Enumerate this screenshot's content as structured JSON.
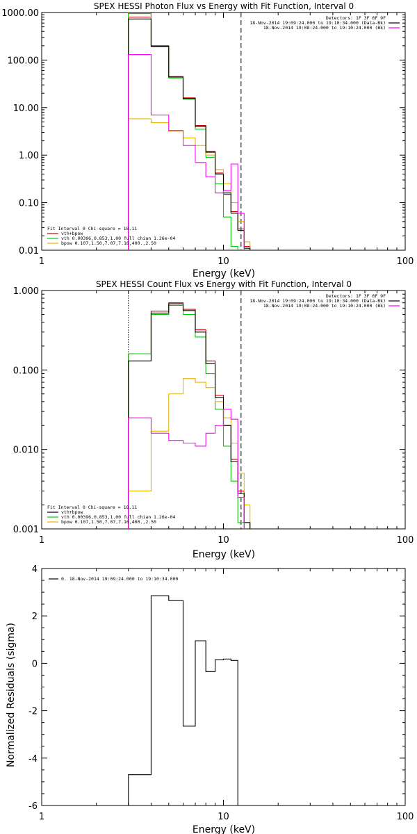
{
  "colors": {
    "data": "#000000",
    "bk": "#ff00ff",
    "total": "#cc0000",
    "vth": "#00cc00",
    "bpow": "#e8b400"
  },
  "chart_data": [
    {
      "id": "photon",
      "type": "line",
      "title": "SPEX HESSI Photon Flux vs Energy with Fit Function, Interval 0",
      "xlabel": "Energy (keV)",
      "ylabel": "",
      "xscale": "log",
      "yscale": "log",
      "xlim": [
        1,
        100
      ],
      "ylim": [
        0.01,
        1000
      ],
      "xticks": [
        "1",
        "10",
        "100"
      ],
      "yticks": [
        "1000.00",
        "100.00",
        "10.00",
        "1.00",
        "0.10",
        "0.01"
      ],
      "vlines": [
        {
          "x": 3.0,
          "style": "dotted",
          "color": "#e8b400"
        },
        {
          "x": 12.5,
          "style": "dashed",
          "color": "#000000"
        }
      ],
      "legend_tr": [
        "Detectors: 1F 3F 6F 9F",
        "18-Nov-2014 19:09:24.000 to 19:10:34.000 (Data-Bk)",
        "18-Nov-2014 19:08:24.000 to 19:10:24.000 (Bk)"
      ],
      "legend_tr_colors": [
        "",
        "data",
        "bk"
      ],
      "legend_bl": [
        "Fit Interval 0   Chi-square = 18.11",
        "vth+bpow",
        "vth 0.00396,0.853,1.00  full chian 1.26e-04",
        "bpow 0.107,1.50,7.07,7.16,400.,2.50"
      ],
      "legend_bl_colors": [
        "",
        "total",
        "vth",
        "bpow"
      ],
      "edges": [
        3.0,
        4.0,
        5.0,
        6.0,
        7.0,
        8.0,
        9.0,
        10.0,
        11.0,
        12.0,
        13.0,
        14.0,
        15.0
      ],
      "series": [
        {
          "name": "vth+bpow",
          "color": "total",
          "values": [
            800,
            200,
            45,
            16,
            4.2,
            1.2,
            0.42,
            0.15,
            0.065,
            0.028,
            0.012,
            null
          ]
        },
        {
          "name": "vth",
          "color": "vth",
          "values": [
            950,
            190,
            42,
            15,
            3.5,
            0.9,
            0.25,
            0.05,
            0.012,
            null,
            null,
            null
          ]
        },
        {
          "name": "bpow",
          "color": "bpow",
          "values": [
            5.8,
            4.8,
            3.2,
            2.3,
            1.6,
            1.0,
            0.5,
            0.25,
            0.1,
            0.04,
            0.015,
            null
          ]
        },
        {
          "name": "Data-Bk",
          "color": "data",
          "values": [
            730,
            195,
            44,
            15.5,
            4.0,
            1.15,
            0.4,
            0.16,
            0.06,
            0.026,
            0.011,
            null
          ]
        },
        {
          "name": "Bk",
          "color": "bk",
          "values": [
            130,
            7.0,
            3.3,
            1.6,
            0.7,
            0.35,
            0.16,
            0.18,
            0.65,
            0.06,
            null,
            null
          ]
        }
      ]
    },
    {
      "id": "count",
      "type": "line",
      "title": "SPEX HESSI Count Flux vs Energy with Fit Function, Interval 0",
      "xlabel": "Energy (keV)",
      "ylabel": "",
      "xscale": "log",
      "yscale": "log",
      "xlim": [
        1,
        100
      ],
      "ylim": [
        0.001,
        1
      ],
      "xticks": [
        "1",
        "10",
        "100"
      ],
      "yticks": [
        "1.000",
        "0.100",
        "0.010",
        "0.001"
      ],
      "vlines": [
        {
          "x": 3.0,
          "style": "dotted",
          "color": "#000000"
        },
        {
          "x": 12.5,
          "style": "dashed",
          "color": "#000000"
        }
      ],
      "legend_tr": [
        "Detectors: 1F 3F 6F 9F",
        "18-Nov-2014 19:09:24.000 to 19:10:34.000 (Data-Bk)",
        "18-Nov-2014 19:08:24.000 to 19:10:24.000 (Bk)"
      ],
      "legend_tr_colors": [
        "",
        "data",
        "bk"
      ],
      "legend_bl": [
        "Fit Interval 0   Chi-square = 18.11",
        "vth+bpow",
        "vth 0.00396,0.853,1.00  full chian 1.26e-04",
        "bpow 0.107,1.50,7.07,7.16,400.,2.50"
      ],
      "legend_bl_colors": [
        "",
        "data",
        "vth",
        "bpow"
      ],
      "edges": [
        3.0,
        4.0,
        5.0,
        6.0,
        7.0,
        8.0,
        9.0,
        10.0,
        11.0,
        12.0,
        13.0,
        14.0,
        15.0
      ],
      "series": [
        {
          "name": "vth+bpow",
          "color": "total",
          "values": [
            0.16,
            0.55,
            0.7,
            0.58,
            0.32,
            0.13,
            0.048,
            0.02,
            0.0075,
            0.003,
            0.0012,
            null
          ]
        },
        {
          "name": "vth",
          "color": "vth",
          "values": [
            0.16,
            0.5,
            0.65,
            0.5,
            0.26,
            0.09,
            0.032,
            0.011,
            0.004,
            0.0012,
            null,
            null
          ]
        },
        {
          "name": "bpow",
          "color": "bpow",
          "values": [
            0.003,
            0.017,
            0.05,
            0.078,
            0.07,
            0.06,
            0.04,
            0.025,
            0.012,
            0.005,
            0.002,
            null
          ]
        },
        {
          "name": "Data-Bk",
          "color": "data",
          "values": [
            0.13,
            0.52,
            0.68,
            0.56,
            0.3,
            0.12,
            0.045,
            0.02,
            0.007,
            0.0028,
            0.0012,
            null
          ]
        },
        {
          "name": "Bk",
          "color": "bk",
          "values": [
            0.025,
            0.016,
            0.013,
            0.012,
            0.011,
            0.016,
            0.02,
            0.032,
            0.024,
            0.0025,
            null,
            null
          ]
        }
      ]
    },
    {
      "id": "residuals",
      "type": "line",
      "title": "",
      "xlabel": "Energy (keV)",
      "ylabel": "Normalized Residuals (sigma)",
      "xscale": "log",
      "yscale": "linear",
      "xlim": [
        1,
        100
      ],
      "ylim": [
        -6,
        4
      ],
      "xticks": [
        "1",
        "10",
        "100"
      ],
      "yticks": [
        "4",
        "2",
        "0",
        "-2",
        "-4",
        "-6"
      ],
      "legend_tl": [
        "0. 18-Nov-2014 19:09:24.000 to 19:10:34.000"
      ],
      "edges": [
        3.0,
        4.0,
        5.0,
        6.0,
        7.0,
        8.0,
        9.0,
        10.0,
        11.0,
        12.0
      ],
      "series": [
        {
          "name": "0. 18-Nov-2014 19:09:24.000 to 19:10:34.000",
          "color": "data",
          "values": [
            -4.7,
            2.85,
            2.65,
            -2.65,
            0.95,
            -0.35,
            0.15,
            0.18,
            0.12
          ]
        }
      ]
    }
  ]
}
